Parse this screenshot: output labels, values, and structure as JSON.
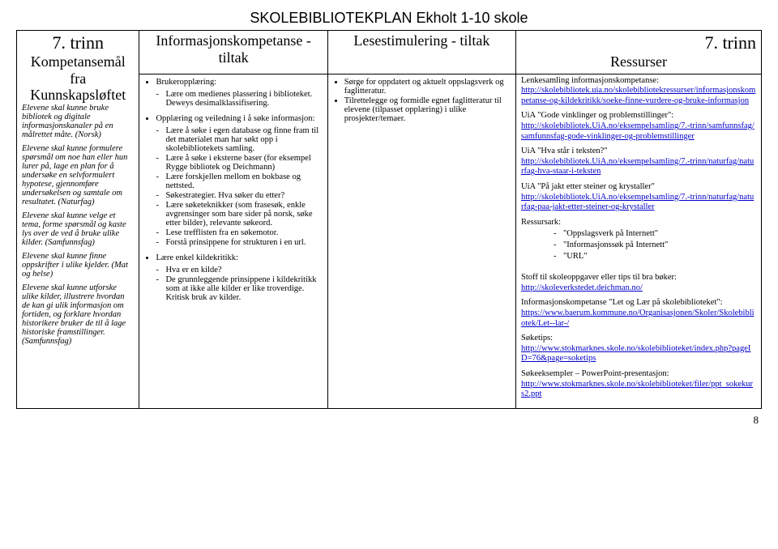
{
  "title": "SKOLEBIBLIOTEKPLAN Ekholt 1-10 skole",
  "trinn": "7. trinn",
  "headers": {
    "col1": "Kompetansemål fra Kunnskapsløftet",
    "col2": "Informasjonskompetanse - tiltak",
    "col3": "Lesestimulering - tiltak",
    "col4": "Ressurser"
  },
  "col1": {
    "p1": "Elevene skal kunne bruke bibliotek og digitale informasjonskanaler på en målrettet måte. (Norsk)",
    "p2": "Elevene skal kunne formulere spørsmål om noe han eller hun lurer på, lage en plan for å undersøke en selvformulert hypotese, gjennomføre undersøkelsen og samtale om resultatet. (Naturfag)",
    "p3": "Elevene skal kunne velge et tema, forme spørsmål og kaste lys over de ved å bruke ulike kilder. (Samfunnsfag)",
    "p4": "Elevene skal kunne finne oppskrifter i ulike kjelder. (Mat og helse)",
    "p5": "Elevene skal kunne utforske ulike kilder, illustrere hvordan de kan gi ulik informasjon om fortiden, og forklare hvordan historikere bruker de til å lage historiske framstillinger. (Samfunnsfag)"
  },
  "col2": {
    "g1_head": "Brukeropplæring:",
    "g1_i1": "Lære om medienes plassering i biblioteket. Deweys desimalklassifisering.",
    "g2_head": "Opplæring og veiledning i å søke informasjon:",
    "g2_i1": "Lære å søke i egen database og finne fram til det materialet man har søkt opp i skolebibliotekets samling.",
    "g2_i2": "Lære å søke i eksterne baser (for eksempel Rygge bibliotek og Deichmann)",
    "g2_i3": "Lære forskjellen mellom en bokbase og nettsted.",
    "g2_i4": "Søkestrategier. Hva søker du etter?",
    "g2_i5": "Lære søketeknikker (som frasesøk, enkle avgrensinger som bare sider på norsk, søke etter bilder), relevante søkeord.",
    "g2_i6": "Lese trefflisten fra en søkemotor.",
    "g2_i7": "Forstå prinsippene for strukturen i en url.",
    "g3_head": "Lære enkel kildekritikk:",
    "g3_i1": "Hva er en kilde?",
    "g3_i2": "De grunnleggende prinsippene i kildekritikk som at ikke alle kilder er like troverdige. Kritisk bruk av kilder."
  },
  "col3": {
    "i1": "Sørge for oppdatert og aktuelt oppslagsverk og faglitteratur.",
    "i2": "Tilrettelegge og formidle egnet faglitteratur til elevene (tilpasset opplæring) i ulike prosjekter/temaer."
  },
  "col4": {
    "b1_label": "Lenkesamling informasjonskompetanse:",
    "b1_link": "http://skolebibliotek.uia.no/skolebibliotekressurser/informasjonskompetanse-og-kildekritikk/soeke-finne-vurdere-og-bruke-informasjon",
    "b2_label": "UiA \"Gode vinklinger og problemstillinger\":",
    "b2_link": "http://skolebibliotek.UiA.no/eksempelsamling/7.-trinn/samfunnsfag/samfunnsfag-gode-vinklinger-og-problemstillinger",
    "b3_label": "UiA \"Hva står i teksten?\"",
    "b3_link": "http://skolebibliotek.UiA.no/eksempelsamling/7.-trinn/naturfag/naturfag-hva-staar-i-teksten",
    "b4_label": "UiA \"På jakt etter steiner og krystaller\"",
    "b4_link": "http://skolebibliotek.UiA.no/eksempelsamling/7.-trinn/naturfag/naturfag-paa-jakt-etter-steiner-og-krystaller",
    "res_label": "Ressursark:",
    "res_i1": "\"Oppslagsverk på Internett\"",
    "res_i2": "\"Informasjonssøk på Internett\"",
    "res_i3": "\"URL\"",
    "b5_label": "Stoff til skoleoppgaver eller tips til bra bøker:",
    "b5_link": "http://skoleverkstedet.deichman.no/",
    "b6_label": "Informasjonskompetanse \"Let og Lær på skolebiblioteket\":",
    "b6_link": "https://www.baerum.kommune.no/Organisasjonen/Skoler/Skolebibliotek/Let--lar-/",
    "b7_label": "Søketips:",
    "b7_link": "http://www.stokmarknes.skole.no/skolebiblioteket/index.php?pageID=76&page=soketips",
    "b8_label": "Søkeeksempler – PowerPoint-presentasjon:",
    "b8_link": "http://www.stokmarknes.skole.no/skolebiblioteket/filer/ppt_sokekurs2.ppt"
  },
  "pagenum": "8"
}
